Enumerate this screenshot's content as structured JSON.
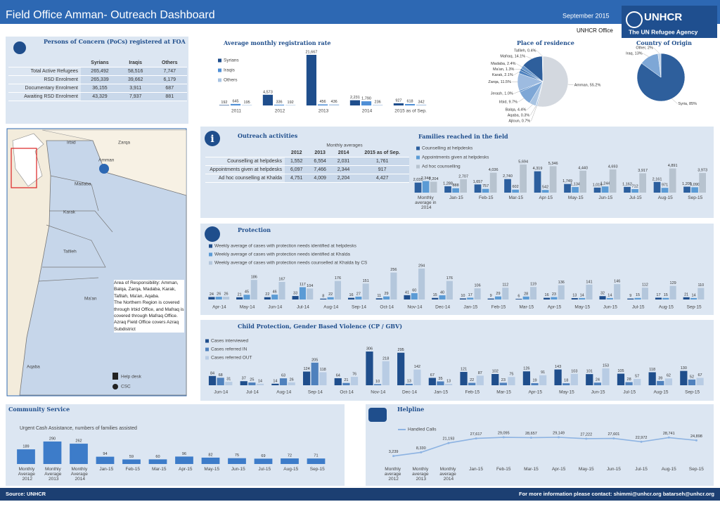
{
  "header": {
    "title": "Field Office Amman- Outreach Dashboard",
    "date": "September 2015",
    "office": "UNHCR Office",
    "logo": "UNHCR",
    "tagline": "The UN Refugee Agency"
  },
  "poc": {
    "title": "Persons of Concern (PoCs) registered at FOA",
    "columns": [
      "Syrians",
      "Iraqis",
      "Others"
    ],
    "rows": [
      {
        "label": "Total Active Refugees",
        "cells": [
          "265,492",
          "58,516",
          "7,747"
        ]
      },
      {
        "label": "RSD Enrolment",
        "cells": [
          "265,339",
          "39,662",
          "6,179"
        ]
      },
      {
        "label": "Documentary Enrolment",
        "cells": [
          "36,155",
          "3,911",
          "687"
        ]
      },
      {
        "label": "Awaiting RSD Enrolment",
        "cells": [
          "43,329",
          "7,937",
          "881"
        ]
      }
    ]
  },
  "outreach": {
    "title": "Outreach activities",
    "subtitle": "Monthly averages",
    "columns": [
      "2012",
      "2013",
      "2014",
      "2015 as of Sep."
    ],
    "rows": [
      {
        "label": "Counselling at helpdesks",
        "cells": [
          "1,552",
          "6,554",
          "2,031",
          "1,761"
        ]
      },
      {
        "label": "Appointments given at helpdesks",
        "cells": [
          "6,097",
          "7,466",
          "2,344",
          "917"
        ]
      },
      {
        "label": "Ad hoc counselling at Khalda",
        "cells": [
          "4,751",
          "4,009",
          "2,204",
          "4,427"
        ]
      }
    ]
  },
  "map": {
    "labels": [
      "Irbid",
      "Zarqa",
      "Amman",
      "Madaba",
      "Karak",
      "Tafileh",
      "Ma'an",
      "Aqaba"
    ],
    "note": [
      "Area of Responsibility: Amman, Balqa, Zarqa, Madaba, Karak, Tafilah, Ma'an, Aqaba.",
      "The Northern Region is covered through Irbid Office, and Mafraq is covered through Mafraq Office.",
      "Azraq Field Office covers Azraq Subdistrict"
    ],
    "legend": [
      "Help desk",
      "CSC"
    ]
  },
  "chart_data": [
    {
      "type": "bar",
      "title": "Average monthly registration rate",
      "categories": [
        "2011",
        "2012",
        "2013",
        "2014",
        "2015 as of Sep."
      ],
      "series": [
        {
          "name": "Syrians",
          "color": "#1f4e8c",
          "values": [
            192,
            4573,
            21667,
            2231,
            927
          ],
          "value_labels": [
            "192",
            "4,573",
            "21,667",
            "2,231",
            "927"
          ]
        },
        {
          "name": "Iraqis",
          "color": "#4f8fd6",
          "values": [
            645,
            336,
            456,
            1790,
            618
          ],
          "value_labels": [
            "645",
            "336",
            "456",
            "1,790",
            "618"
          ]
        },
        {
          "name": "Others",
          "color": "#a9c4e2",
          "values": [
            195,
            192,
            436,
            236,
            342
          ]
        }
      ]
    },
    {
      "type": "pie",
      "title": "Place of residence",
      "labels": [
        "Amman, 55.2%",
        "Ajloun, 0.7%",
        "Aqaba, 0.3%",
        "Balqa, 4.4%",
        "Irbid, 9.7%",
        "Jerash, 1.0%",
        "Zarqa, 11.5%",
        "Karak, 2.1%",
        "Ma'an, 1.3%",
        "Madaba, 2.4%",
        "Mafraq, 14.1%",
        "Tafileh, 0.4%"
      ],
      "values": [
        55.2,
        0.7,
        0.3,
        4.4,
        9.7,
        1.0,
        11.5,
        2.1,
        1.3,
        2.4,
        14.1,
        0.4
      ],
      "colors": [
        "#d3d8df",
        "#8fb2d8",
        "#6f9ccf",
        "#a9c4e2",
        "#7ea7d6",
        "#5b8ec8",
        "#9dbbe0",
        "#4f83c0",
        "#3a70ae",
        "#6a98cc",
        "#2e5f9c",
        "#c0d4ea"
      ]
    },
    {
      "type": "pie",
      "title": "Country of Origin",
      "labels": [
        "Syria, 85%",
        "Iraq, 13%",
        "Other, 2%"
      ],
      "values": [
        85,
        13,
        2
      ],
      "colors": [
        "#2e5f9c",
        "#7ea7d6",
        "#c0d4ea"
      ]
    },
    {
      "type": "bar",
      "title": "Families reached in the field",
      "categories": [
        "Monthly average in 2014",
        "Jan-15",
        "Feb-15",
        "Mar-15",
        "Apr-15",
        "May-15",
        "Jun-15",
        "Jul-15",
        "Aug-15",
        "Sep-15"
      ],
      "series": [
        {
          "name": "Counselling at helpdesks",
          "color": "#2c5f9e",
          "values": [
            2031,
            1288,
            1657,
            2740,
            4319,
            1749,
            1019,
            1162,
            2161,
            1205
          ],
          "value_labels": [
            "2,031",
            "1,288",
            "1,657",
            "2,740",
            "4,319",
            "1,749",
            "1,019",
            "1,162",
            "2,161",
            "1,205"
          ]
        },
        {
          "name": "Appointments given at helpdesks",
          "color": "#5b9bd5",
          "values": [
            2344,
            888,
            757,
            602,
            542,
            1134,
            1244,
            712,
            971,
            1090
          ],
          "value_labels": [
            "2,344",
            "888",
            "757",
            "602",
            "542",
            "1,134",
            "1,244",
            "712",
            "971",
            "1,090"
          ]
        },
        {
          "name": "Ad hoc counselling",
          "color": "#b7c3cf",
          "values": [
            2204,
            2707,
            4036,
            5694,
            5346,
            4440,
            4693,
            3917,
            4891,
            3973
          ],
          "value_labels": [
            "2,204",
            "2,707",
            "4,036",
            "5,694",
            "5,346",
            "4,440",
            "4,693",
            "3,917",
            "4,891",
            "3,973"
          ]
        }
      ]
    },
    {
      "type": "bar",
      "title": "Protection",
      "categories": [
        "Apr-14",
        "May-14",
        "Jun-14",
        "Jul-14",
        "Aug-14",
        "Sep-14",
        "Oct-14",
        "Nov-14",
        "Dec-14",
        "Jan-15",
        "Feb-15",
        "Mar-15",
        "Apr-15",
        "May-15",
        "Jun-15",
        "Jul-15",
        "Aug-15",
        "Sep-15"
      ],
      "series": [
        {
          "name": "Weekly average of cases with protection needs identified at helpdesks",
          "color": "#1f4e8c",
          "values": [
            24,
            21,
            22,
            33,
            8,
            16,
            11,
            41,
            15,
            10,
            9,
            6,
            16,
            13,
            32,
            9,
            17,
            21
          ]
        },
        {
          "name": "Weekly average of cases with protection needs identified at Khalda",
          "color": "#5b9bd5",
          "values": [
            26,
            45,
            46,
            117,
            22,
            27,
            29,
            60,
            40,
            17,
            29,
            28,
            23,
            14,
            14,
            15,
            15,
            14
          ]
        },
        {
          "name": "Weekly average of cases with protection needs counselled at Khalda by CS",
          "color": "#b4c7dc",
          "values": [
            26,
            186,
            167,
            104,
            176,
            151,
            256,
            294,
            176,
            106,
            112,
            119,
            136,
            141,
            146,
            112,
            129,
            110
          ]
        }
      ]
    },
    {
      "type": "bar",
      "title": "Child Protection, Gender Based Violence (CP / GBV)",
      "categories": [
        "Jun-14",
        "Jul-14",
        "Aug-14",
        "Sep-14",
        "Oct-14",
        "Nov-14",
        "Dec-14",
        "Jan-15",
        "Feb-15",
        "Mar-15",
        "Apr-15",
        "May-15",
        "Jun-15",
        "Jul-15",
        "Aug-15",
        "Sep-15"
      ],
      "series": [
        {
          "name": "Cases interviewed",
          "color": "#1f4e8c",
          "values": [
            84,
            37,
            14,
            124,
            64,
            306,
            295,
            67,
            121,
            102,
            126,
            143,
            101,
            105,
            118,
            130
          ]
        },
        {
          "name": "Cases referred IN",
          "color": "#4f81bd",
          "values": [
            68,
            25,
            63,
            205,
            21,
            10,
            13,
            35,
            22,
            23,
            19,
            18,
            24,
            28,
            39,
            52
          ]
        },
        {
          "name": "Cases referred OUT",
          "color": "#b8cce4",
          "values": [
            31,
            14,
            26,
            118,
            76,
            218,
            142,
            13,
            87,
            75,
            91,
            103,
            153,
            57,
            62,
            67
          ]
        }
      ]
    },
    {
      "type": "bar",
      "title": "Community Service",
      "subtitle": "Urgent Cash Assistance, numbers of families assisted",
      "color": "#3d7cc9",
      "categories": [
        "Monthly Average 2012",
        "Monthly Average 2013",
        "Monthly Average 2014",
        "Jan-15",
        "Feb-15",
        "Mar-15",
        "Apr-15",
        "May-15",
        "Jun-15",
        "Jul-15",
        "Aug-15",
        "Sep-15"
      ],
      "values": [
        189,
        290,
        262,
        94,
        59,
        60,
        96,
        82,
        75,
        69,
        72,
        71
      ]
    },
    {
      "type": "line",
      "title": "Helpline",
      "categories": [
        "Monthly average 2012",
        "Monthly average 2013",
        "Monthly average 2014",
        "Jan-15",
        "Feb-15",
        "Mar-15",
        "Apr-15",
        "May-15",
        "Jun-15",
        "Jul-15",
        "Aug-15",
        "Sep-15"
      ],
      "series": [
        {
          "name": "Handled Calls",
          "color": "#8db3e2",
          "values": [
            3239,
            8330,
            21193,
            27617,
            29095,
            28657,
            29149,
            27222,
            27601,
            22972,
            28741,
            24898
          ],
          "value_labels": [
            "3,239",
            "8,330",
            "21,193",
            "27,617",
            "29,095",
            "28,657",
            "29,149",
            "27,222",
            "27,601",
            "22,972",
            "28,741",
            "24,898"
          ]
        }
      ]
    }
  ],
  "footer": {
    "source": "Source: UNHCR",
    "contact": "For more information please contact: shimmi@unhcr.org  batarseh@unhcr.org"
  }
}
